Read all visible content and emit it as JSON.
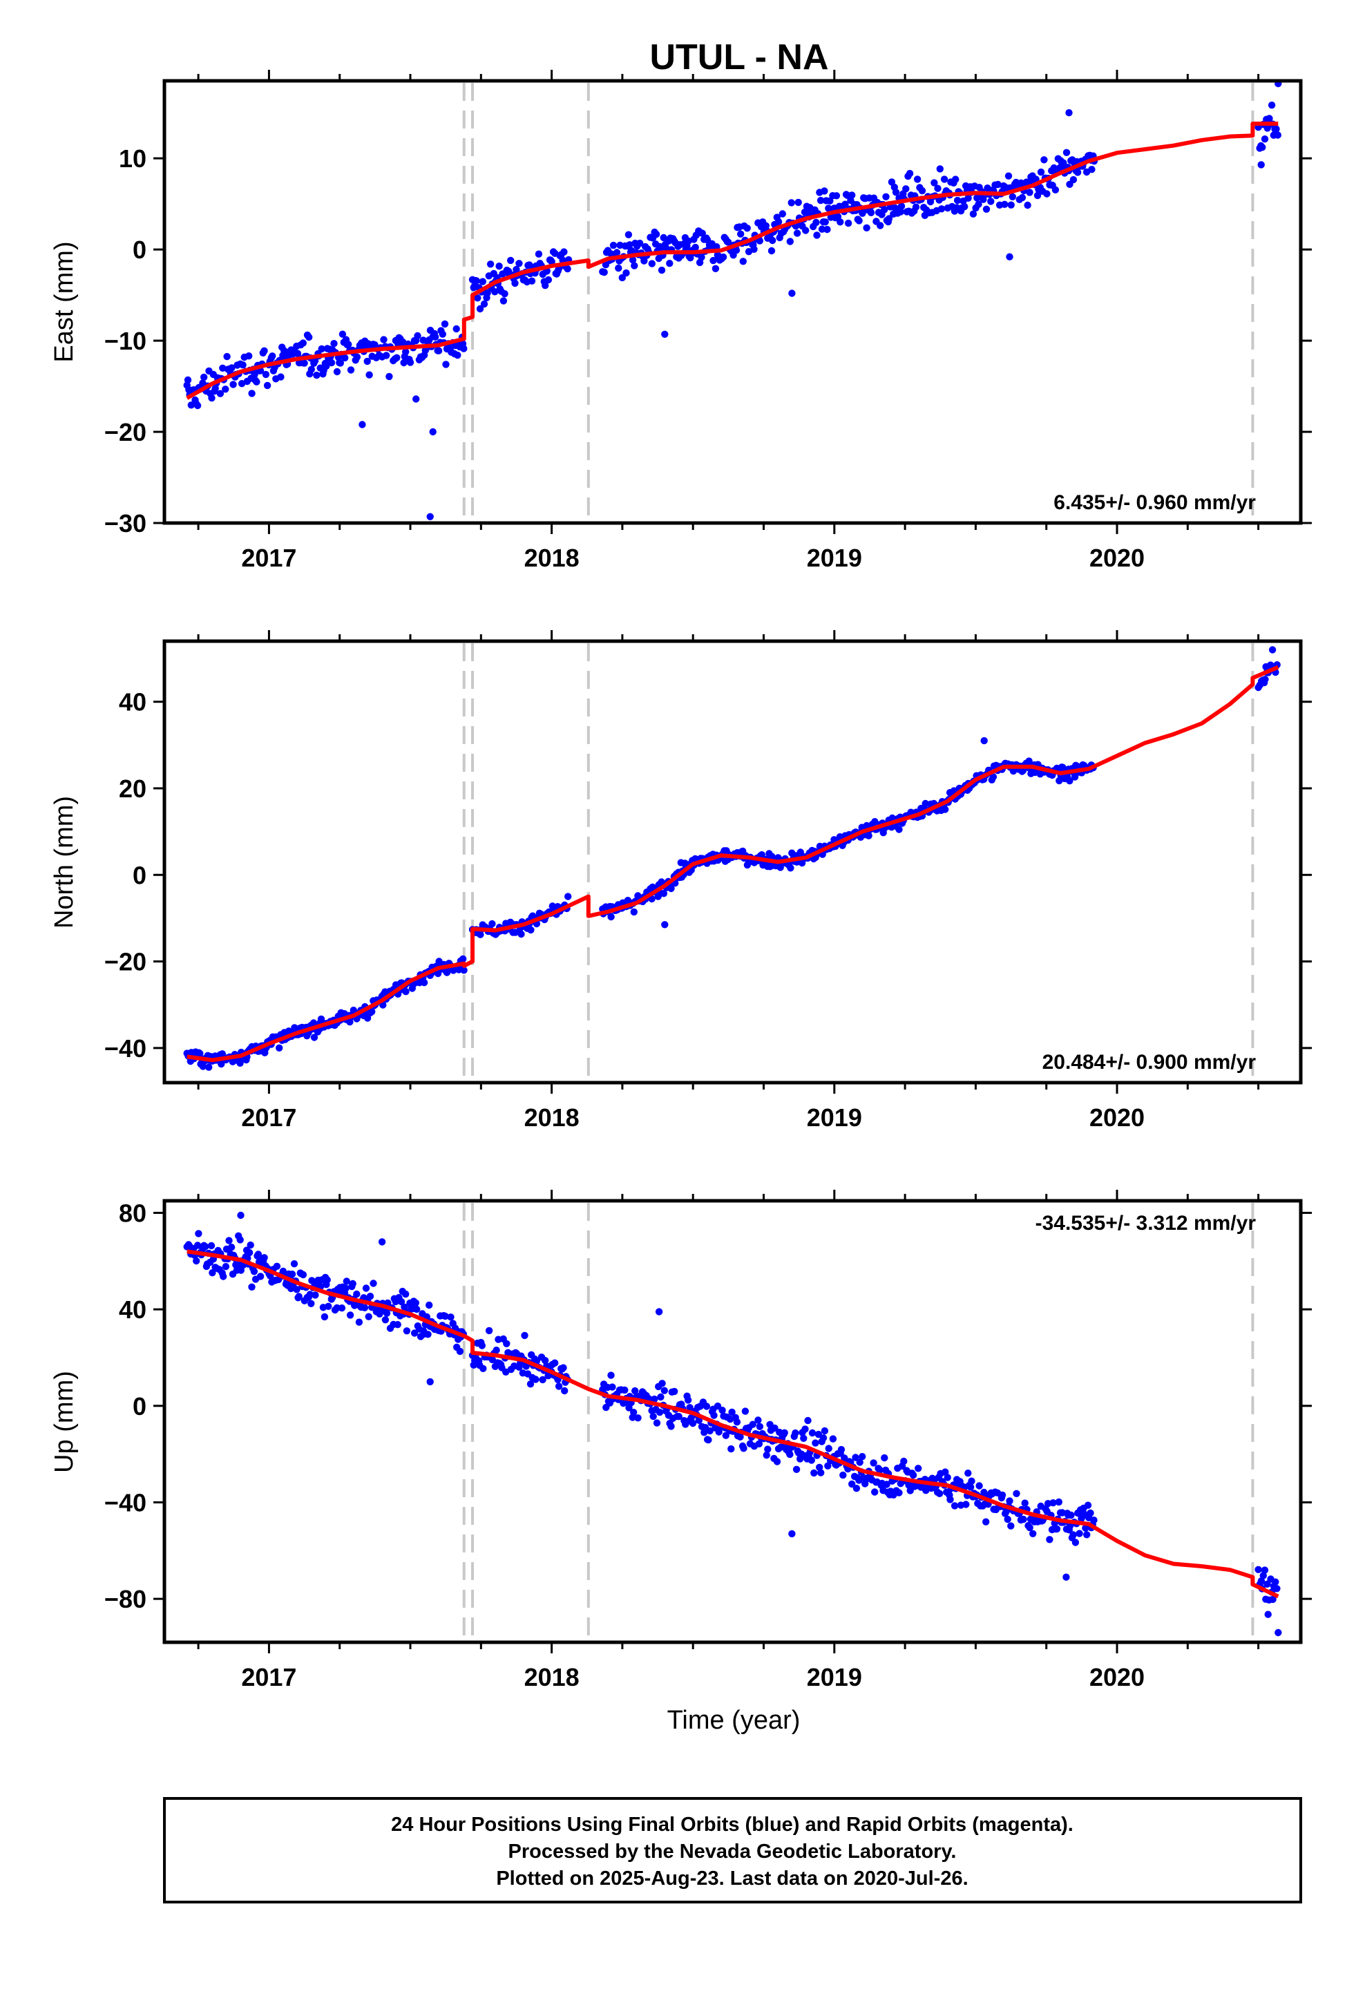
{
  "chart_data": {
    "type": "scatter",
    "title": "UTUL - NA",
    "xlabel": "Time (year)",
    "x_ticks": [
      "2017",
      "2018",
      "2019",
      "2020"
    ],
    "xlim": [
      2016.63,
      2020.65
    ],
    "colors": {
      "observations": "#0000ff",
      "model": "#ff0000",
      "offsets": "#c8c8c8",
      "frame": "#000000"
    },
    "offset_epochs": [
      2017.69,
      2017.72,
      2018.13,
      2020.48
    ],
    "panels": [
      {
        "name": "east",
        "ylabel": "East (mm)",
        "ylim": [
          -30,
          18.5
        ],
        "y_ticks": [
          10,
          0,
          -10,
          -20,
          -30
        ],
        "y_tick_labels": [
          "10",
          "0",
          "−10",
          "−20",
          "−30"
        ],
        "rate_text": "6.435+/- 0.960 mm/yr",
        "rate_position": "bottom-right",
        "model_segments": [
          [
            [
              2016.71,
              -16.3
            ],
            [
              2016.8,
              -14.7
            ],
            [
              2016.9,
              -13.4
            ],
            [
              2017.0,
              -12.6
            ],
            [
              2017.1,
              -12.0
            ],
            [
              2017.2,
              -11.6
            ],
            [
              2017.3,
              -11.2
            ],
            [
              2017.4,
              -10.9
            ],
            [
              2017.5,
              -10.7
            ],
            [
              2017.6,
              -10.5
            ],
            [
              2017.69,
              -9.8
            ]
          ],
          [
            [
              2017.69,
              -7.7
            ],
            [
              2017.72,
              -7.4
            ]
          ],
          [
            [
              2017.72,
              -5.0
            ],
            [
              2017.8,
              -3.6
            ],
            [
              2017.9,
              -2.5
            ],
            [
              2018.0,
              -1.8
            ],
            [
              2018.13,
              -1.2
            ]
          ],
          [
            [
              2018.13,
              -1.9
            ],
            [
              2018.2,
              -1.0
            ],
            [
              2018.3,
              -0.6
            ],
            [
              2018.4,
              -0.3
            ],
            [
              2018.5,
              -0.3
            ],
            [
              2018.6,
              -0.1
            ],
            [
              2018.7,
              1.0
            ],
            [
              2018.8,
              2.4
            ],
            [
              2018.9,
              3.4
            ],
            [
              2019.0,
              4.1
            ],
            [
              2019.1,
              4.6
            ],
            [
              2019.2,
              5.1
            ],
            [
              2019.3,
              5.6
            ],
            [
              2019.4,
              6.0
            ],
            [
              2019.5,
              6.2
            ],
            [
              2019.6,
              6.1
            ],
            [
              2019.7,
              7.0
            ],
            [
              2019.8,
              8.4
            ],
            [
              2019.9,
              9.7
            ],
            [
              2020.0,
              10.6
            ],
            [
              2020.1,
              11.0
            ],
            [
              2020.2,
              11.4
            ],
            [
              2020.3,
              12.0
            ],
            [
              2020.4,
              12.4
            ],
            [
              2020.48,
              12.5
            ]
          ],
          [
            [
              2020.48,
              13.8
            ],
            [
              2020.57,
              13.8
            ]
          ]
        ]
      },
      {
        "name": "north",
        "ylabel": "North (mm)",
        "ylim": [
          -48,
          54
        ],
        "y_ticks": [
          40,
          20,
          0,
          -20,
          -40
        ],
        "y_tick_labels": [
          "40",
          "20",
          "0",
          "−20",
          "−40"
        ],
        "rate_text": "20.484+/- 0.900 mm/yr",
        "rate_position": "bottom-right",
        "model_segments": [
          [
            [
              2016.71,
              -42.0
            ],
            [
              2016.8,
              -42.8
            ],
            [
              2016.9,
              -41.8
            ],
            [
              2017.0,
              -39.0
            ],
            [
              2017.1,
              -36.5
            ],
            [
              2017.2,
              -34.5
            ],
            [
              2017.3,
              -32.5
            ],
            [
              2017.4,
              -29.0
            ],
            [
              2017.5,
              -24.5
            ],
            [
              2017.6,
              -21.5
            ],
            [
              2017.69,
              -20.5
            ]
          ],
          [
            [
              2017.69,
              -21.0
            ],
            [
              2017.72,
              -20.0
            ]
          ],
          [
            [
              2017.72,
              -12.5
            ],
            [
              2017.8,
              -12.8
            ],
            [
              2017.9,
              -11.5
            ],
            [
              2018.0,
              -9.0
            ],
            [
              2018.13,
              -5.0
            ]
          ],
          [
            [
              2018.13,
              -9.5
            ],
            [
              2018.2,
              -8.5
            ],
            [
              2018.3,
              -6.5
            ],
            [
              2018.4,
              -2.5
            ],
            [
              2018.5,
              2.5
            ],
            [
              2018.6,
              4.5
            ],
            [
              2018.7,
              4.0
            ],
            [
              2018.8,
              3.0
            ],
            [
              2018.9,
              4.0
            ],
            [
              2019.0,
              7.0
            ],
            [
              2019.1,
              10.0
            ],
            [
              2019.2,
              12.0
            ],
            [
              2019.3,
              14.0
            ],
            [
              2019.4,
              17.0
            ],
            [
              2019.5,
              22.0
            ],
            [
              2019.6,
              25.0
            ],
            [
              2019.7,
              25.0
            ],
            [
              2019.8,
              23.5
            ],
            [
              2019.9,
              24.5
            ],
            [
              2020.0,
              27.5
            ],
            [
              2020.1,
              30.5
            ],
            [
              2020.2,
              32.5
            ],
            [
              2020.3,
              35.0
            ],
            [
              2020.4,
              39.5
            ],
            [
              2020.48,
              44.0
            ]
          ],
          [
            [
              2020.48,
              45.5
            ],
            [
              2020.57,
              48.0
            ]
          ]
        ]
      },
      {
        "name": "up",
        "ylabel": "Up (mm)",
        "ylim": [
          -98,
          85
        ],
        "y_ticks": [
          80,
          40,
          0,
          -40,
          -80
        ],
        "y_tick_labels": [
          "80",
          "40",
          "0",
          "−40",
          "−80"
        ],
        "rate_text": "-34.535+/- 3.312 mm/yr",
        "rate_position": "top-right",
        "model_segments": [
          [
            [
              2016.71,
              64.0
            ],
            [
              2016.8,
              62.5
            ],
            [
              2016.9,
              60.5
            ],
            [
              2017.0,
              56.0
            ],
            [
              2017.1,
              51.0
            ],
            [
              2017.2,
              47.0
            ],
            [
              2017.3,
              44.0
            ],
            [
              2017.4,
              41.5
            ],
            [
              2017.5,
              38.0
            ],
            [
              2017.6,
              33.0
            ],
            [
              2017.69,
              29.0
            ]
          ],
          [
            [
              2017.69,
              29.0
            ],
            [
              2017.72,
              27.0
            ]
          ],
          [
            [
              2017.72,
              22.0
            ],
            [
              2017.8,
              21.0
            ],
            [
              2017.9,
              19.0
            ],
            [
              2018.0,
              14.0
            ],
            [
              2018.13,
              7.0
            ]
          ],
          [
            [
              2018.13,
              7.0
            ],
            [
              2018.2,
              4.0
            ],
            [
              2018.3,
              2.5
            ],
            [
              2018.4,
              0.0
            ],
            [
              2018.5,
              -3.0
            ],
            [
              2018.6,
              -8.0
            ],
            [
              2018.7,
              -12.0
            ],
            [
              2018.8,
              -14.5
            ],
            [
              2018.9,
              -17.0
            ],
            [
              2019.0,
              -22.0
            ],
            [
              2019.1,
              -27.0
            ],
            [
              2019.2,
              -29.5
            ],
            [
              2019.3,
              -31.5
            ],
            [
              2019.4,
              -33.0
            ],
            [
              2019.5,
              -37.0
            ],
            [
              2019.6,
              -41.5
            ],
            [
              2019.7,
              -45.0
            ],
            [
              2019.8,
              -47.5
            ],
            [
              2019.9,
              -49.0
            ],
            [
              2020.0,
              -56.0
            ],
            [
              2020.1,
              -62.0
            ],
            [
              2020.2,
              -65.5
            ],
            [
              2020.3,
              -66.5
            ],
            [
              2020.4,
              -68.0
            ],
            [
              2020.48,
              -71.0
            ]
          ],
          [
            [
              2020.48,
              -74.0
            ],
            [
              2020.57,
              -79.0
            ]
          ]
        ]
      }
    ],
    "observation_intervals": [
      [
        2016.71,
        2017.69
      ],
      [
        2017.72,
        2018.06
      ],
      [
        2018.18,
        2019.92
      ],
      [
        2020.5,
        2020.57
      ]
    ],
    "observation_spacing_years": 0.0037,
    "observation_scatter_mm": {
      "east": 1.5,
      "north": 1.1,
      "up": 5.5
    },
    "observation_outliers": {
      "east": [
        [
          2017.33,
          -19.2
        ],
        [
          2017.52,
          -16.4
        ],
        [
          2017.58,
          -20.0
        ],
        [
          2017.57,
          -29.3
        ],
        [
          2018.4,
          -9.3
        ],
        [
          2018.85,
          -4.8
        ],
        [
          2019.62,
          -0.8
        ],
        [
          2020.51,
          9.3
        ],
        [
          2020.57,
          18.2
        ],
        [
          2019.83,
          15.0
        ]
      ],
      "north": [
        [
          2019.53,
          31.0
        ],
        [
          2018.4,
          -11.5
        ],
        [
          2020.55,
          52.0
        ]
      ],
      "up": [
        [
          2016.9,
          79.0
        ],
        [
          2017.4,
          68.0
        ],
        [
          2017.57,
          10.0
        ],
        [
          2018.38,
          39.0
        ],
        [
          2018.85,
          -53.0
        ],
        [
          2019.82,
          -71.0
        ],
        [
          2020.57,
          -94.0
        ]
      ]
    }
  },
  "footer": {
    "line1": "24 Hour Positions Using Final Orbits (blue) and Rapid Orbits (magenta).",
    "line2": "Processed by the Nevada Geodetic Laboratory.",
    "line3": "Plotted on 2025-Aug-23. Last data on 2020-Jul-26."
  }
}
